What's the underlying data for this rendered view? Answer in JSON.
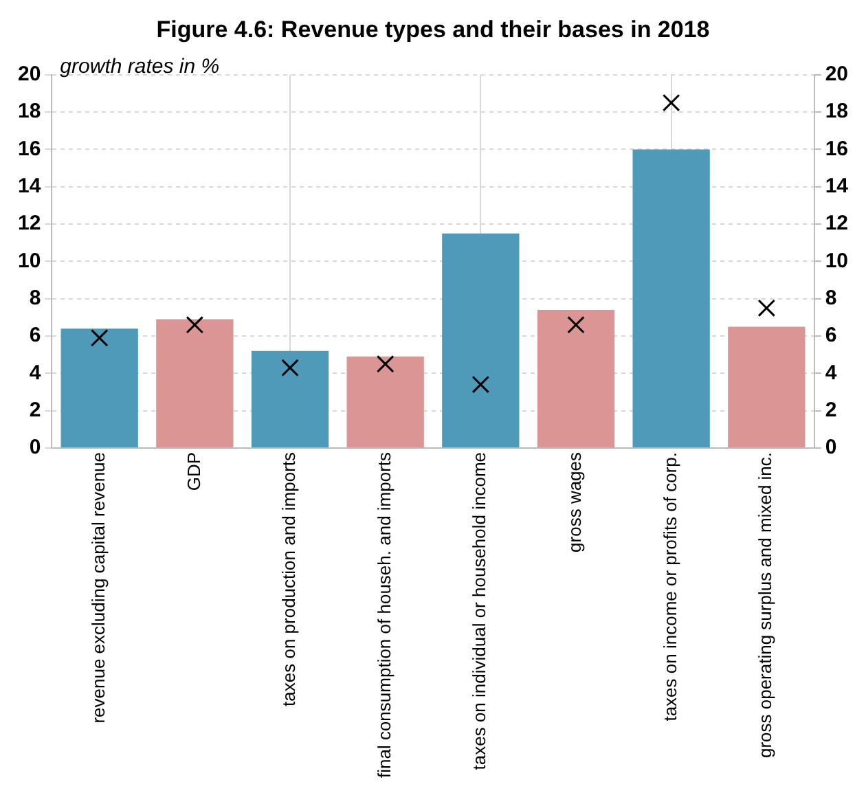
{
  "chart_data": {
    "type": "bar",
    "title": "Figure 4.6: Revenue types and their bases in 2018",
    "subtitle": "growth rates in %",
    "categories": [
      "revenue excluding capital revenue",
      "GDP",
      "taxes on production and imports",
      "final consumption of househ. and imports",
      "taxes on individual or household income",
      "gross wages",
      "taxes on income or profits of corp.",
      "gross operating surplus and mixed inc."
    ],
    "series": [
      {
        "colors": [
          "#4f99b9",
          "#db9595",
          "#4f99b9",
          "#db9595",
          "#4f99b9",
          "#db9595",
          "#4f99b9",
          "#db9595"
        ],
        "values": [
          6.4,
          6.9,
          5.2,
          4.9,
          11.5,
          7.4,
          16.0,
          6.5
        ]
      },
      {
        "type": "scatter",
        "marker": "cross",
        "color": "#000000",
        "x": [
          "revenue excluding capital revenue",
          "GDP",
          "taxes on production and imports",
          "final consumption of househ. and imports",
          "taxes on individual or household income",
          "gross wages",
          "taxes on income or profits of corp.",
          "gross operating surplus and mixed inc."
        ],
        "values": [
          5.9,
          6.6,
          4.3,
          4.5,
          3.4,
          6.6,
          18.5,
          7.5
        ]
      }
    ],
    "ylim": [
      0,
      20
    ],
    "yticks": [
      0,
      2,
      4,
      6,
      8,
      10,
      12,
      14,
      16,
      18,
      20
    ],
    "y2lim": [
      0,
      20
    ],
    "y2ticks": [
      0,
      2,
      4,
      6,
      8,
      10,
      12,
      14,
      16,
      18,
      20
    ],
    "grid": true
  }
}
